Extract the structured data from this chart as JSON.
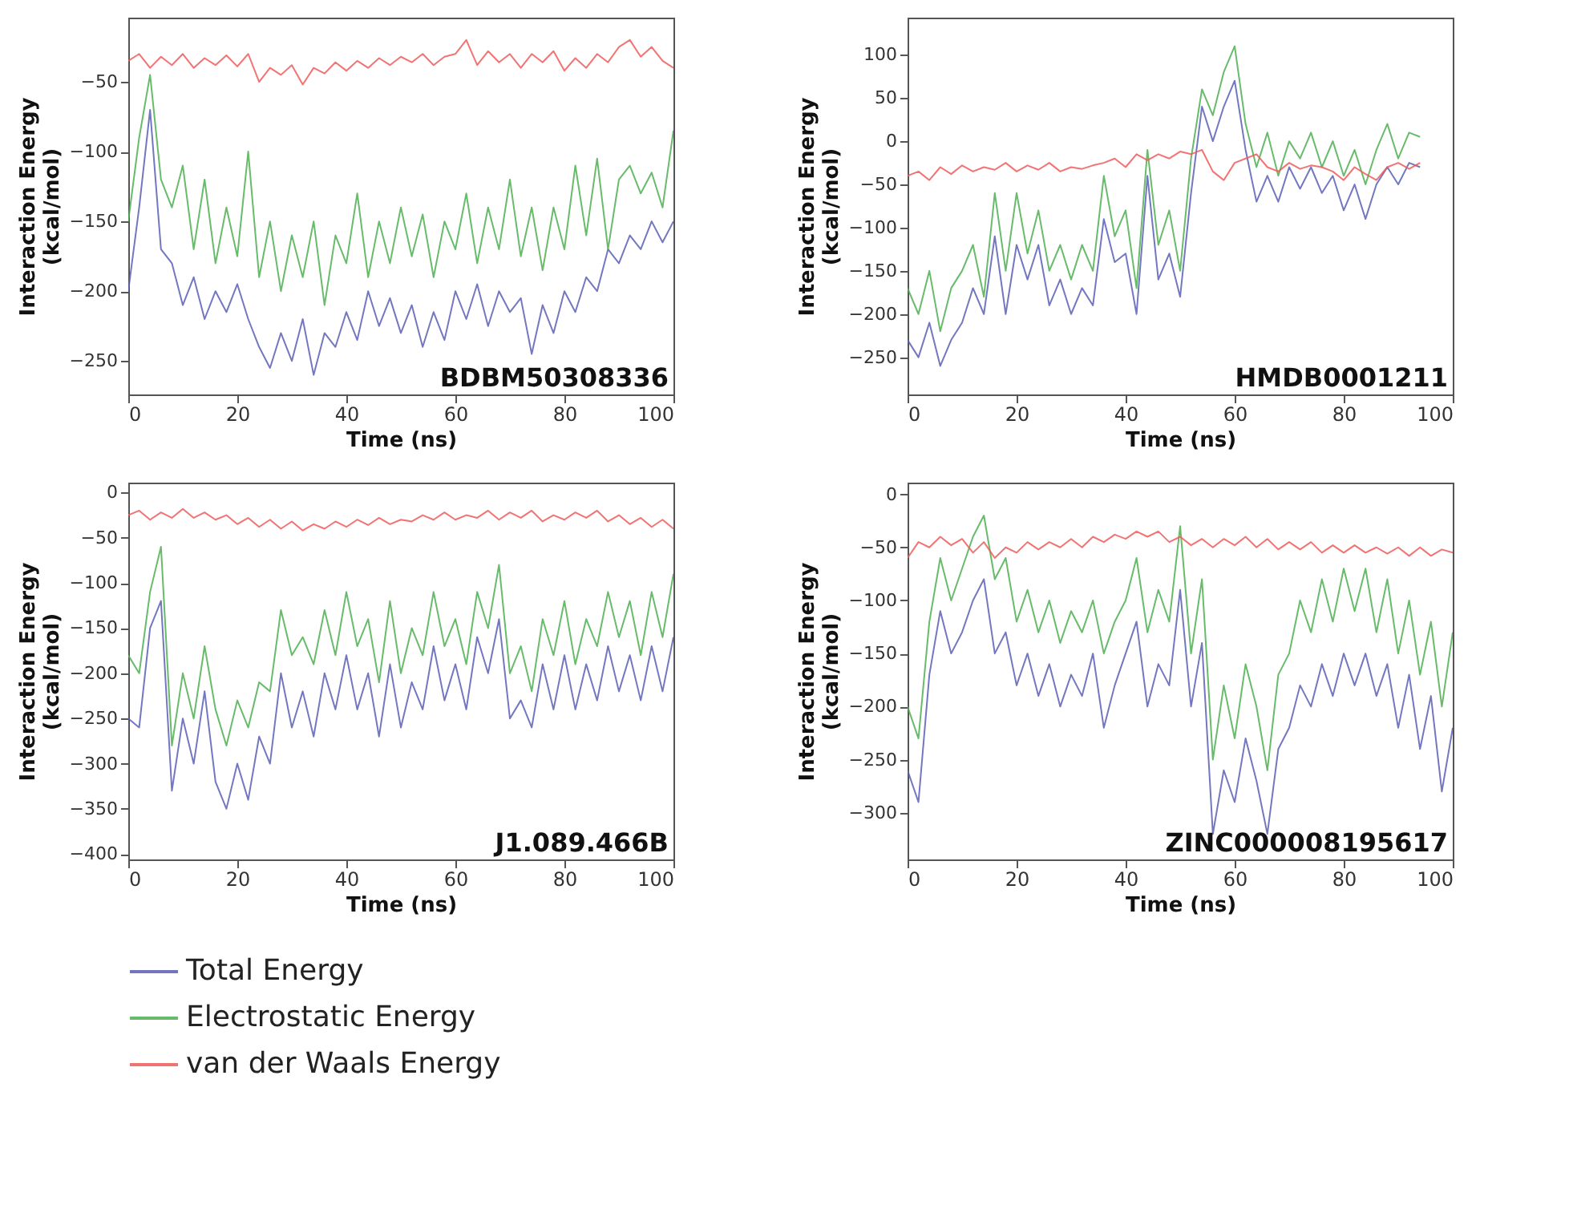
{
  "chart_data": [
    {
      "type": "line",
      "xlabel": "Time (ns)",
      "ylabel": "Interaction Energy\n(kcal/mol)",
      "annotations": [
        "BDBM50308336"
      ],
      "xlim": [
        0,
        100
      ],
      "xticks": [
        0,
        20,
        40,
        60,
        80,
        100
      ],
      "ylim": [
        -274,
        -4
      ],
      "yticks": [
        -250,
        -200,
        -150,
        -100,
        -50
      ],
      "legend": "bottom",
      "x": [
        0,
        2,
        4,
        6,
        8,
        10,
        12,
        14,
        16,
        18,
        20,
        22,
        24,
        26,
        28,
        30,
        32,
        34,
        36,
        38,
        40,
        42,
        44,
        46,
        48,
        50,
        52,
        54,
        56,
        58,
        60,
        62,
        64,
        66,
        68,
        70,
        72,
        74,
        76,
        78,
        80,
        82,
        84,
        86,
        88,
        90,
        92,
        94,
        96,
        98,
        100
      ],
      "series": [
        {
          "name": "Total Energy",
          "color": "#5b5fb5",
          "values": [
            -200,
            -140,
            -70,
            -170,
            -180,
            -210,
            -190,
            -220,
            -200,
            -215,
            -195,
            -220,
            -240,
            -255,
            -230,
            -250,
            -220,
            -260,
            -230,
            -240,
            -215,
            -235,
            -200,
            -225,
            -205,
            -230,
            -210,
            -240,
            -215,
            -235,
            -200,
            -220,
            -195,
            -225,
            -200,
            -215,
            -205,
            -245,
            -210,
            -230,
            -200,
            -215,
            -190,
            -200,
            -170,
            -180,
            -160,
            -170,
            -150,
            -165,
            -150
          ]
        },
        {
          "name": "Electrostatic Energy",
          "color": "#4caf50",
          "values": [
            -150,
            -90,
            -45,
            -120,
            -140,
            -110,
            -170,
            -120,
            -180,
            -140,
            -175,
            -100,
            -190,
            -150,
            -200,
            -160,
            -190,
            -150,
            -210,
            -160,
            -180,
            -130,
            -190,
            -150,
            -180,
            -140,
            -175,
            -145,
            -190,
            -150,
            -170,
            -130,
            -180,
            -140,
            -170,
            -120,
            -175,
            -140,
            -185,
            -140,
            -170,
            -110,
            -160,
            -105,
            -170,
            -120,
            -110,
            -130,
            -115,
            -140,
            -85
          ]
        },
        {
          "name": "van der Waals Energy",
          "color": "#f05a5a",
          "values": [
            -35,
            -30,
            -40,
            -32,
            -38,
            -30,
            -40,
            -33,
            -38,
            -31,
            -39,
            -30,
            -50,
            -40,
            -45,
            -38,
            -52,
            -40,
            -44,
            -36,
            -42,
            -35,
            -40,
            -33,
            -38,
            -32,
            -36,
            -30,
            -38,
            -32,
            -30,
            -20,
            -38,
            -28,
            -36,
            -30,
            -40,
            -30,
            -36,
            -28,
            -42,
            -33,
            -40,
            -30,
            -36,
            -25,
            -20,
            -32,
            -25,
            -35,
            -40
          ]
        }
      ]
    },
    {
      "type": "line",
      "xlabel": "Time (ns)",
      "ylabel": "Interaction Energy\n(kcal/mol)",
      "annotations": [
        "HMDB0001211"
      ],
      "xlim": [
        0,
        100
      ],
      "xticks": [
        0,
        20,
        40,
        60,
        80,
        100
      ],
      "ylim": [
        -293,
        143
      ],
      "yticks": [
        -250,
        -200,
        -150,
        -100,
        -50,
        0,
        50,
        100
      ],
      "legend": "bottom",
      "x": [
        0,
        2,
        4,
        6,
        8,
        10,
        12,
        14,
        16,
        18,
        20,
        22,
        24,
        26,
        28,
        30,
        32,
        34,
        36,
        38,
        40,
        42,
        44,
        46,
        48,
        50,
        52,
        54,
        56,
        58,
        60,
        62,
        64,
        66,
        68,
        70,
        72,
        74,
        76,
        78,
        80,
        82,
        84,
        86,
        88,
        90,
        92,
        94
      ],
      "series": [
        {
          "name": "Total Energy",
          "color": "#5b5fb5",
          "values": [
            -230,
            -250,
            -210,
            -260,
            -230,
            -210,
            -170,
            -200,
            -110,
            -200,
            -120,
            -160,
            -120,
            -190,
            -160,
            -200,
            -170,
            -190,
            -90,
            -140,
            -130,
            -200,
            -40,
            -160,
            -130,
            -180,
            -60,
            40,
            0,
            40,
            70,
            -10,
            -70,
            -40,
            -70,
            -30,
            -55,
            -30,
            -60,
            -40,
            -80,
            -50,
            -90,
            -50,
            -30,
            -50,
            -25,
            -30
          ]
        },
        {
          "name": "Electrostatic Energy",
          "color": "#4caf50",
          "values": [
            -170,
            -200,
            -150,
            -220,
            -170,
            -150,
            -120,
            -180,
            -60,
            -150,
            -60,
            -130,
            -80,
            -150,
            -120,
            -160,
            -120,
            -150,
            -40,
            -110,
            -80,
            -170,
            -10,
            -120,
            -80,
            -150,
            -20,
            60,
            30,
            80,
            110,
            20,
            -30,
            10,
            -40,
            0,
            -20,
            10,
            -30,
            0,
            -40,
            -10,
            -50,
            -10,
            20,
            -20,
            10,
            5
          ]
        },
        {
          "name": "van der Waals Energy",
          "color": "#f05a5a",
          "values": [
            -40,
            -35,
            -45,
            -30,
            -38,
            -28,
            -35,
            -30,
            -33,
            -25,
            -35,
            -28,
            -33,
            -25,
            -35,
            -30,
            -32,
            -28,
            -25,
            -20,
            -30,
            -15,
            -22,
            -15,
            -20,
            -12,
            -15,
            -10,
            -35,
            -45,
            -25,
            -20,
            -15,
            -30,
            -35,
            -25,
            -32,
            -28,
            -30,
            -35,
            -45,
            -30,
            -38,
            -45,
            -30,
            -25,
            -32,
            -25
          ]
        }
      ]
    },
    {
      "type": "line",
      "xlabel": "Time (ns)",
      "ylabel": "Interaction Energy\n(kcal/mol)",
      "annotations": [
        "J1.089.466B"
      ],
      "xlim": [
        0,
        100
      ],
      "xticks": [
        0,
        20,
        40,
        60,
        80,
        100
      ],
      "ylim": [
        -406,
        11
      ],
      "yticks": [
        -400,
        -350,
        -300,
        -250,
        -200,
        -150,
        -100,
        -50,
        0
      ],
      "legend": "bottom",
      "x": [
        0,
        2,
        4,
        6,
        8,
        10,
        12,
        14,
        16,
        18,
        20,
        22,
        24,
        26,
        28,
        30,
        32,
        34,
        36,
        38,
        40,
        42,
        44,
        46,
        48,
        50,
        52,
        54,
        56,
        58,
        60,
        62,
        64,
        66,
        68,
        70,
        72,
        74,
        76,
        78,
        80,
        82,
        84,
        86,
        88,
        90,
        92,
        94,
        96,
        98,
        100
      ],
      "series": [
        {
          "name": "Total Energy",
          "color": "#5b5fb5",
          "values": [
            -250,
            -260,
            -150,
            -120,
            -330,
            -250,
            -300,
            -220,
            -320,
            -350,
            -300,
            -340,
            -270,
            -300,
            -200,
            -260,
            -220,
            -270,
            -200,
            -240,
            -180,
            -240,
            -200,
            -270,
            -190,
            -260,
            -210,
            -240,
            -170,
            -230,
            -190,
            -240,
            -160,
            -200,
            -140,
            -250,
            -230,
            -260,
            -190,
            -240,
            -180,
            -240,
            -190,
            -230,
            -170,
            -220,
            -180,
            -230,
            -170,
            -220,
            -160
          ]
        },
        {
          "name": "Electrostatic Energy",
          "color": "#4caf50",
          "values": [
            -180,
            -200,
            -110,
            -60,
            -280,
            -200,
            -250,
            -170,
            -240,
            -280,
            -230,
            -260,
            -210,
            -220,
            -130,
            -180,
            -160,
            -190,
            -130,
            -180,
            -110,
            -170,
            -140,
            -210,
            -120,
            -200,
            -150,
            -180,
            -110,
            -170,
            -140,
            -190,
            -110,
            -150,
            -80,
            -200,
            -170,
            -220,
            -140,
            -180,
            -120,
            -190,
            -140,
            -170,
            -110,
            -160,
            -120,
            -180,
            -110,
            -160,
            -90
          ]
        },
        {
          "name": "van der Waals Energy",
          "color": "#f05a5a",
          "values": [
            -25,
            -20,
            -30,
            -22,
            -28,
            -18,
            -28,
            -22,
            -30,
            -25,
            -35,
            -28,
            -38,
            -30,
            -40,
            -32,
            -42,
            -35,
            -40,
            -32,
            -38,
            -30,
            -36,
            -28,
            -35,
            -30,
            -32,
            -25,
            -30,
            -22,
            -30,
            -25,
            -28,
            -20,
            -30,
            -22,
            -28,
            -20,
            -32,
            -25,
            -30,
            -22,
            -28,
            -20,
            -32,
            -25,
            -35,
            -28,
            -38,
            -30,
            -40
          ]
        }
      ]
    },
    {
      "type": "line",
      "xlabel": "Time (ns)",
      "ylabel": "Interaction Energy\n(kcal/mol)",
      "annotations": [
        "ZINC000008195617"
      ],
      "xlim": [
        0,
        100
      ],
      "xticks": [
        0,
        20,
        40,
        60,
        80,
        100
      ],
      "ylim": [
        -344,
        11
      ],
      "yticks": [
        -300,
        -250,
        -200,
        -150,
        -100,
        -50,
        0
      ],
      "legend": "bottom",
      "x": [
        0,
        2,
        4,
        6,
        8,
        10,
        12,
        14,
        16,
        18,
        20,
        22,
        24,
        26,
        28,
        30,
        32,
        34,
        36,
        38,
        40,
        42,
        44,
        46,
        48,
        50,
        52,
        54,
        56,
        58,
        60,
        62,
        64,
        66,
        68,
        70,
        72,
        74,
        76,
        78,
        80,
        82,
        84,
        86,
        88,
        90,
        92,
        94,
        96,
        98,
        100
      ],
      "series": [
        {
          "name": "Total Energy",
          "color": "#5b5fb5",
          "values": [
            -260,
            -290,
            -170,
            -110,
            -150,
            -130,
            -100,
            -80,
            -150,
            -130,
            -180,
            -150,
            -190,
            -160,
            -200,
            -170,
            -190,
            -150,
            -220,
            -180,
            -150,
            -120,
            -200,
            -160,
            -180,
            -90,
            -200,
            -140,
            -320,
            -260,
            -290,
            -230,
            -270,
            -320,
            -240,
            -220,
            -180,
            -200,
            -160,
            -190,
            -150,
            -180,
            -150,
            -190,
            -160,
            -220,
            -170,
            -240,
            -190,
            -280,
            -220
          ]
        },
        {
          "name": "Electrostatic Energy",
          "color": "#4caf50",
          "values": [
            -200,
            -230,
            -120,
            -60,
            -100,
            -70,
            -40,
            -20,
            -80,
            -60,
            -120,
            -90,
            -130,
            -100,
            -140,
            -110,
            -130,
            -100,
            -150,
            -120,
            -100,
            -60,
            -130,
            -90,
            -120,
            -30,
            -150,
            -80,
            -250,
            -180,
            -230,
            -160,
            -200,
            -260,
            -170,
            -150,
            -100,
            -130,
            -80,
            -120,
            -70,
            -110,
            -70,
            -130,
            -80,
            -150,
            -100,
            -170,
            -120,
            -200,
            -130
          ]
        },
        {
          "name": "van der Waals Energy",
          "color": "#f05a5a",
          "values": [
            -60,
            -45,
            -50,
            -40,
            -48,
            -42,
            -55,
            -45,
            -60,
            -50,
            -55,
            -45,
            -52,
            -45,
            -50,
            -42,
            -50,
            -40,
            -45,
            -38,
            -42,
            -35,
            -40,
            -35,
            -45,
            -40,
            -48,
            -42,
            -50,
            -42,
            -48,
            -40,
            -50,
            -42,
            -52,
            -45,
            -52,
            -45,
            -55,
            -48,
            -55,
            -48,
            -55,
            -50,
            -56,
            -50,
            -58,
            -50,
            -58,
            -52,
            -55
          ]
        }
      ]
    }
  ]
}
